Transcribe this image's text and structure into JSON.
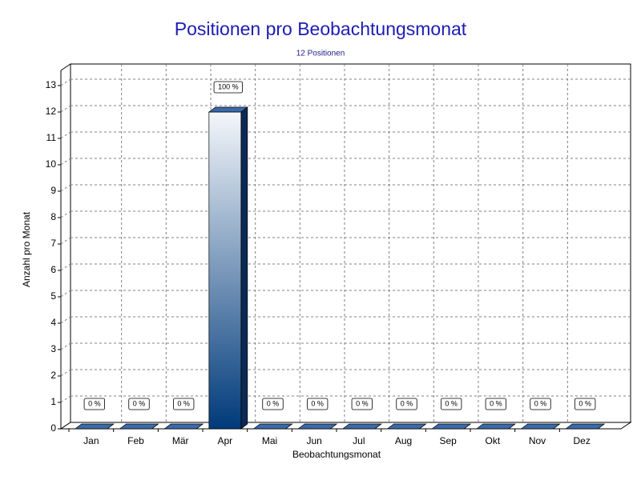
{
  "chart_data": {
    "type": "bar3d",
    "title": "Positionen pro Beobachtungsmonat",
    "subtitle": "12 Positionen",
    "x_label": "Beobachtungsmonat",
    "y_label": "Anzahl pro Monat",
    "categories": [
      "Jan",
      "Feb",
      "Mär",
      "Apr",
      "Mai",
      "Jun",
      "Jul",
      "Aug",
      "Sep",
      "Okt",
      "Nov",
      "Dez"
    ],
    "values": [
      0,
      0,
      0,
      12,
      0,
      0,
      0,
      0,
      0,
      0,
      0,
      0
    ],
    "value_labels": [
      "0 %",
      "0 %",
      "0 %",
      "100 %",
      "0 %",
      "0 %",
      "0 %",
      "0 %",
      "0 %",
      "0 %",
      "0 %",
      "0 %"
    ],
    "color": "#003a7a",
    "ylim": [
      0,
      13
    ],
    "yticks": [
      0,
      1,
      2,
      3,
      4,
      5,
      6,
      7,
      8,
      9,
      10,
      11,
      12,
      13
    ],
    "grid": true
  }
}
